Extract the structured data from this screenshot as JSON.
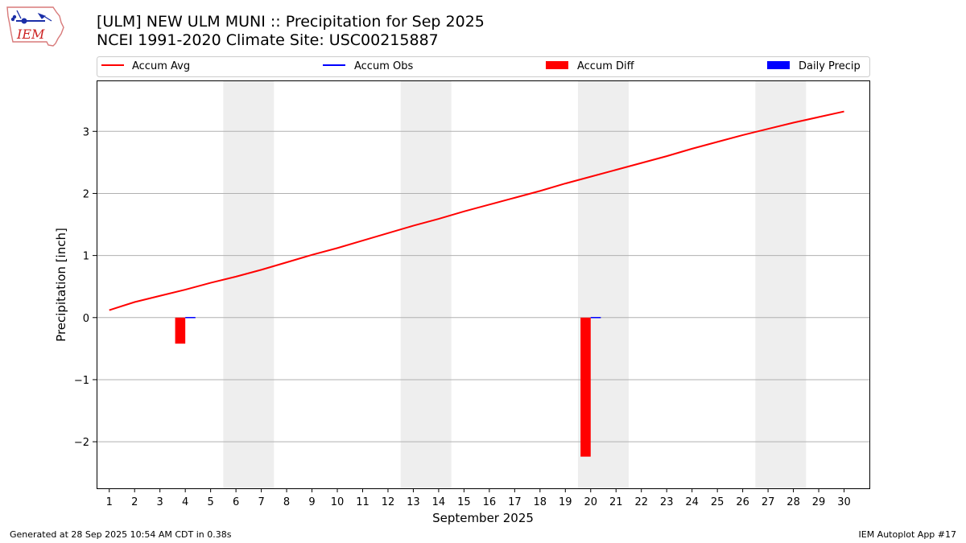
{
  "header": {
    "title_line1": "[ULM] NEW ULM MUNI :: Precipitation for Sep 2025",
    "title_line2": "NCEI 1991-2020 Climate Site: USC00215887",
    "logo_text": "IEM"
  },
  "footer": {
    "generated": "Generated at 28 Sep 2025 10:54 AM CDT in 0.38s",
    "app": "IEM Autoplot App #17"
  },
  "colors": {
    "accum_avg": "#ff0000",
    "accum_obs": "#0000ff",
    "accum_diff": "#ff0000",
    "daily_precip": "#0000ff",
    "weekend_shade": "#eeeeee",
    "grid": "#b0b0b0"
  },
  "chart_data": {
    "type": "line",
    "title": "[ULM] NEW ULM MUNI :: Precipitation for Sep 2025",
    "subtitle": "NCEI 1991-2020 Climate Site: USC00215887",
    "xlabel": "September 2025",
    "ylabel": "Precipitation [inch]",
    "xlim": [
      0.5,
      31.0
    ],
    "ylim": [
      -2.75,
      3.82
    ],
    "grid": "horizontal",
    "legend_position": "top",
    "days": [
      1,
      2,
      3,
      4,
      5,
      6,
      7,
      8,
      9,
      10,
      11,
      12,
      13,
      14,
      15,
      16,
      17,
      18,
      19,
      20,
      21,
      22,
      23,
      24,
      25,
      26,
      27,
      28,
      29,
      30
    ],
    "y_ticks": [
      3,
      2,
      1,
      0,
      -1,
      -2
    ],
    "y_tick_labels": [
      "3",
      "2",
      "1",
      "0",
      "−1",
      "−2"
    ],
    "weekend_spans": [
      [
        5.5,
        7.5
      ],
      [
        12.5,
        14.5
      ],
      [
        19.5,
        21.5
      ],
      [
        26.5,
        28.5
      ]
    ],
    "legend": [
      "Accum Avg",
      "Accum Obs",
      "Accum Diff",
      "Daily Precip"
    ],
    "series": [
      {
        "name": "Accum Avg",
        "kind": "line",
        "x": [
          1,
          2,
          3,
          4,
          5,
          6,
          7,
          8,
          9,
          10,
          11,
          12,
          13,
          14,
          15,
          16,
          17,
          18,
          19,
          20,
          21,
          22,
          23,
          24,
          25,
          26,
          27,
          28,
          29,
          30
        ],
        "values": [
          0.12,
          0.25,
          0.35,
          0.45,
          0.56,
          0.66,
          0.77,
          0.89,
          1.01,
          1.12,
          1.24,
          1.36,
          1.48,
          1.59,
          1.71,
          1.82,
          1.93,
          2.04,
          2.16,
          2.27,
          2.38,
          2.49,
          2.6,
          2.72,
          2.83,
          2.94,
          3.04,
          3.14,
          3.23,
          3.32
        ]
      },
      {
        "name": "Accum Obs",
        "kind": "line",
        "x": [],
        "values": []
      },
      {
        "name": "Accum Diff",
        "kind": "bar",
        "x": [
          4,
          20
        ],
        "values": [
          -0.42,
          -2.24
        ]
      },
      {
        "name": "Daily Precip",
        "kind": "bar",
        "x": [
          4,
          20
        ],
        "values": [
          0.01,
          0.01
        ]
      }
    ]
  }
}
